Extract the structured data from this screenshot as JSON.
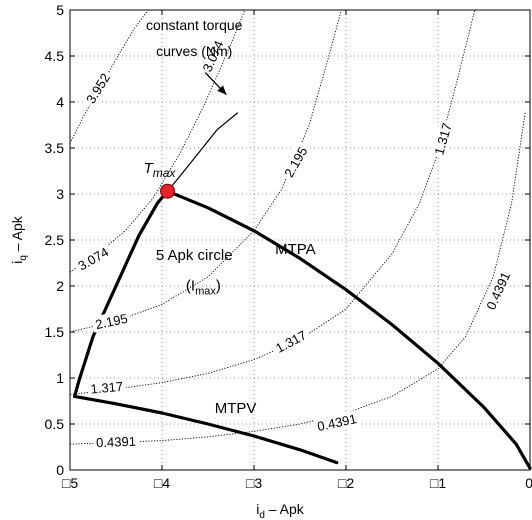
{
  "chart_data": {
    "type": "line",
    "xlabel": "i",
    "xlabel_sub": "d",
    "xlabel_suffix": " – Apk",
    "ylabel": "i",
    "ylabel_sub": "q",
    "ylabel_suffix": " – Apk",
    "xlim": [
      -5,
      0
    ],
    "ylim": [
      0,
      5
    ],
    "xticks": [
      -5,
      -4,
      -3,
      -2,
      -1,
      0
    ],
    "xtick_labels": [
      "□5",
      "□4",
      "□3",
      "□2",
      "□1",
      "0"
    ],
    "yticks": [
      0,
      0.5,
      1,
      1.5,
      2,
      2.5,
      3,
      3.5,
      4,
      4.5,
      5
    ],
    "ytick_labels": [
      "0",
      "0.5",
      "1",
      "1.5",
      "2",
      "2.5",
      "3",
      "3.5",
      "4",
      "4.5",
      "5"
    ],
    "grid": true,
    "series": [
      {
        "style": "thick",
        "x": [
          -3.94,
          -4.05,
          -4.25,
          -4.5,
          -4.75,
          -4.9,
          -4.95
        ],
        "y": [
          3.03,
          2.9,
          2.55,
          2.0,
          1.45,
          0.98,
          0.8
        ]
      },
      {
        "name": "MTPA",
        "style": "thick",
        "x": [
          -3.94,
          -3.5,
          -3.0,
          -2.5,
          -2.0,
          -1.5,
          -1.0,
          -0.5,
          -0.15,
          0.0
        ],
        "y": [
          3.03,
          2.85,
          2.6,
          2.3,
          1.96,
          1.58,
          1.16,
          0.68,
          0.28,
          0.02
        ]
      },
      {
        "name": "MTPV",
        "style": "thick",
        "x": [
          -4.95,
          -4.5,
          -4.0,
          -3.5,
          -3.0,
          -2.5,
          -2.1
        ],
        "y": [
          0.8,
          0.72,
          0.62,
          0.5,
          0.37,
          0.22,
          0.08
        ]
      },
      {
        "style": "thin",
        "x": [
          -3.94,
          -3.8,
          -3.6,
          -3.4,
          -3.18
        ],
        "y": [
          3.03,
          3.2,
          3.45,
          3.7,
          3.88
        ]
      }
    ],
    "contours": [
      {
        "label": "0.4391",
        "x": [
          -5.0,
          -4.5,
          -4.0,
          -3.5,
          -3.0,
          -2.5,
          -2.0,
          -1.5,
          -1.0,
          -0.7,
          -0.4,
          -0.2,
          -0.05
        ],
        "y": [
          0.28,
          0.3,
          0.32,
          0.36,
          0.42,
          0.5,
          0.62,
          0.8,
          1.1,
          1.45,
          2.1,
          2.9,
          3.9
        ]
      },
      {
        "label": "1.317",
        "x": [
          -5.0,
          -4.5,
          -4.0,
          -3.5,
          -3.0,
          -2.5,
          -2.0,
          -1.5,
          -1.2,
          -1.0,
          -0.8,
          -0.6
        ],
        "y": [
          0.82,
          0.88,
          0.95,
          1.05,
          1.2,
          1.42,
          1.75,
          2.35,
          2.9,
          3.45,
          4.2,
          5.0
        ]
      },
      {
        "label": "2.195",
        "x": [
          -5.0,
          -4.5,
          -4.0,
          -3.5,
          -3.0,
          -2.7,
          -2.4,
          -2.2,
          -2.05
        ],
        "y": [
          1.5,
          1.62,
          1.8,
          2.1,
          2.6,
          3.05,
          3.75,
          4.45,
          5.0
        ]
      },
      {
        "label": "3.074",
        "x": [
          -5.0,
          -4.7,
          -4.4,
          -4.1,
          -3.8,
          -3.55,
          -3.35,
          -3.2,
          -3.1
        ],
        "y": [
          2.15,
          2.35,
          2.6,
          2.95,
          3.45,
          3.95,
          4.4,
          4.75,
          5.0
        ]
      },
      {
        "label": "3.952",
        "x": [
          -5.0,
          -4.85,
          -4.65,
          -4.45,
          -4.3,
          -4.15
        ],
        "y": [
          3.55,
          3.85,
          4.2,
          4.55,
          4.8,
          5.0
        ]
      }
    ],
    "contour_labels": [
      {
        "text": "0.4391",
        "x": -4.5,
        "y": 0.31,
        "angle": -2
      },
      {
        "text": "0.4391",
        "x": -2.1,
        "y": 0.52,
        "angle": -12
      },
      {
        "text": "0.4391",
        "x": -0.35,
        "y": 1.95,
        "angle": -66
      },
      {
        "text": "1.317",
        "x": -4.6,
        "y": 0.9,
        "angle": -5
      },
      {
        "text": "1.317",
        "x": -2.6,
        "y": 1.4,
        "angle": -28
      },
      {
        "text": "1.317",
        "x": -0.95,
        "y": 3.6,
        "angle": -74
      },
      {
        "text": "2.195",
        "x": -4.55,
        "y": 1.62,
        "angle": -12
      },
      {
        "text": "2.195",
        "x": -2.55,
        "y": 3.35,
        "angle": -60
      },
      {
        "text": "3.074",
        "x": -4.75,
        "y": 2.3,
        "angle": -30
      },
      {
        "text": "3.074",
        "x": -3.45,
        "y": 4.5,
        "angle": -66
      },
      {
        "text": "3.952",
        "x": -4.7,
        "y": 4.15,
        "angle": -58
      }
    ],
    "marker": {
      "label": "T",
      "label_sub": "max",
      "x": -3.94,
      "y": 3.03,
      "color": "#e8202a"
    },
    "annotations": [
      {
        "id": "constant-torque-1",
        "text": "constant torque",
        "x": -3.65,
        "y": 4.78
      },
      {
        "id": "constant-torque-2",
        "text": "curves (Nm)",
        "x": -3.65,
        "y": 4.5
      },
      {
        "id": "mtpa",
        "text": "MTPA",
        "x": -2.55,
        "y": 2.35
      },
      {
        "id": "mtpv",
        "text": "MTPV",
        "x": -3.2,
        "y": 0.62
      },
      {
        "id": "circle-1",
        "text": "5 Apk circle",
        "x": -3.65,
        "y": 2.28
      },
      {
        "id": "circle-2",
        "text": "(I",
        "sub": "max",
        "suffix": ")",
        "x": -3.55,
        "y": 1.95
      }
    ],
    "arrow": {
      "from": [
        -3.53,
        4.32
      ],
      "to": [
        -3.3,
        4.08
      ]
    }
  }
}
